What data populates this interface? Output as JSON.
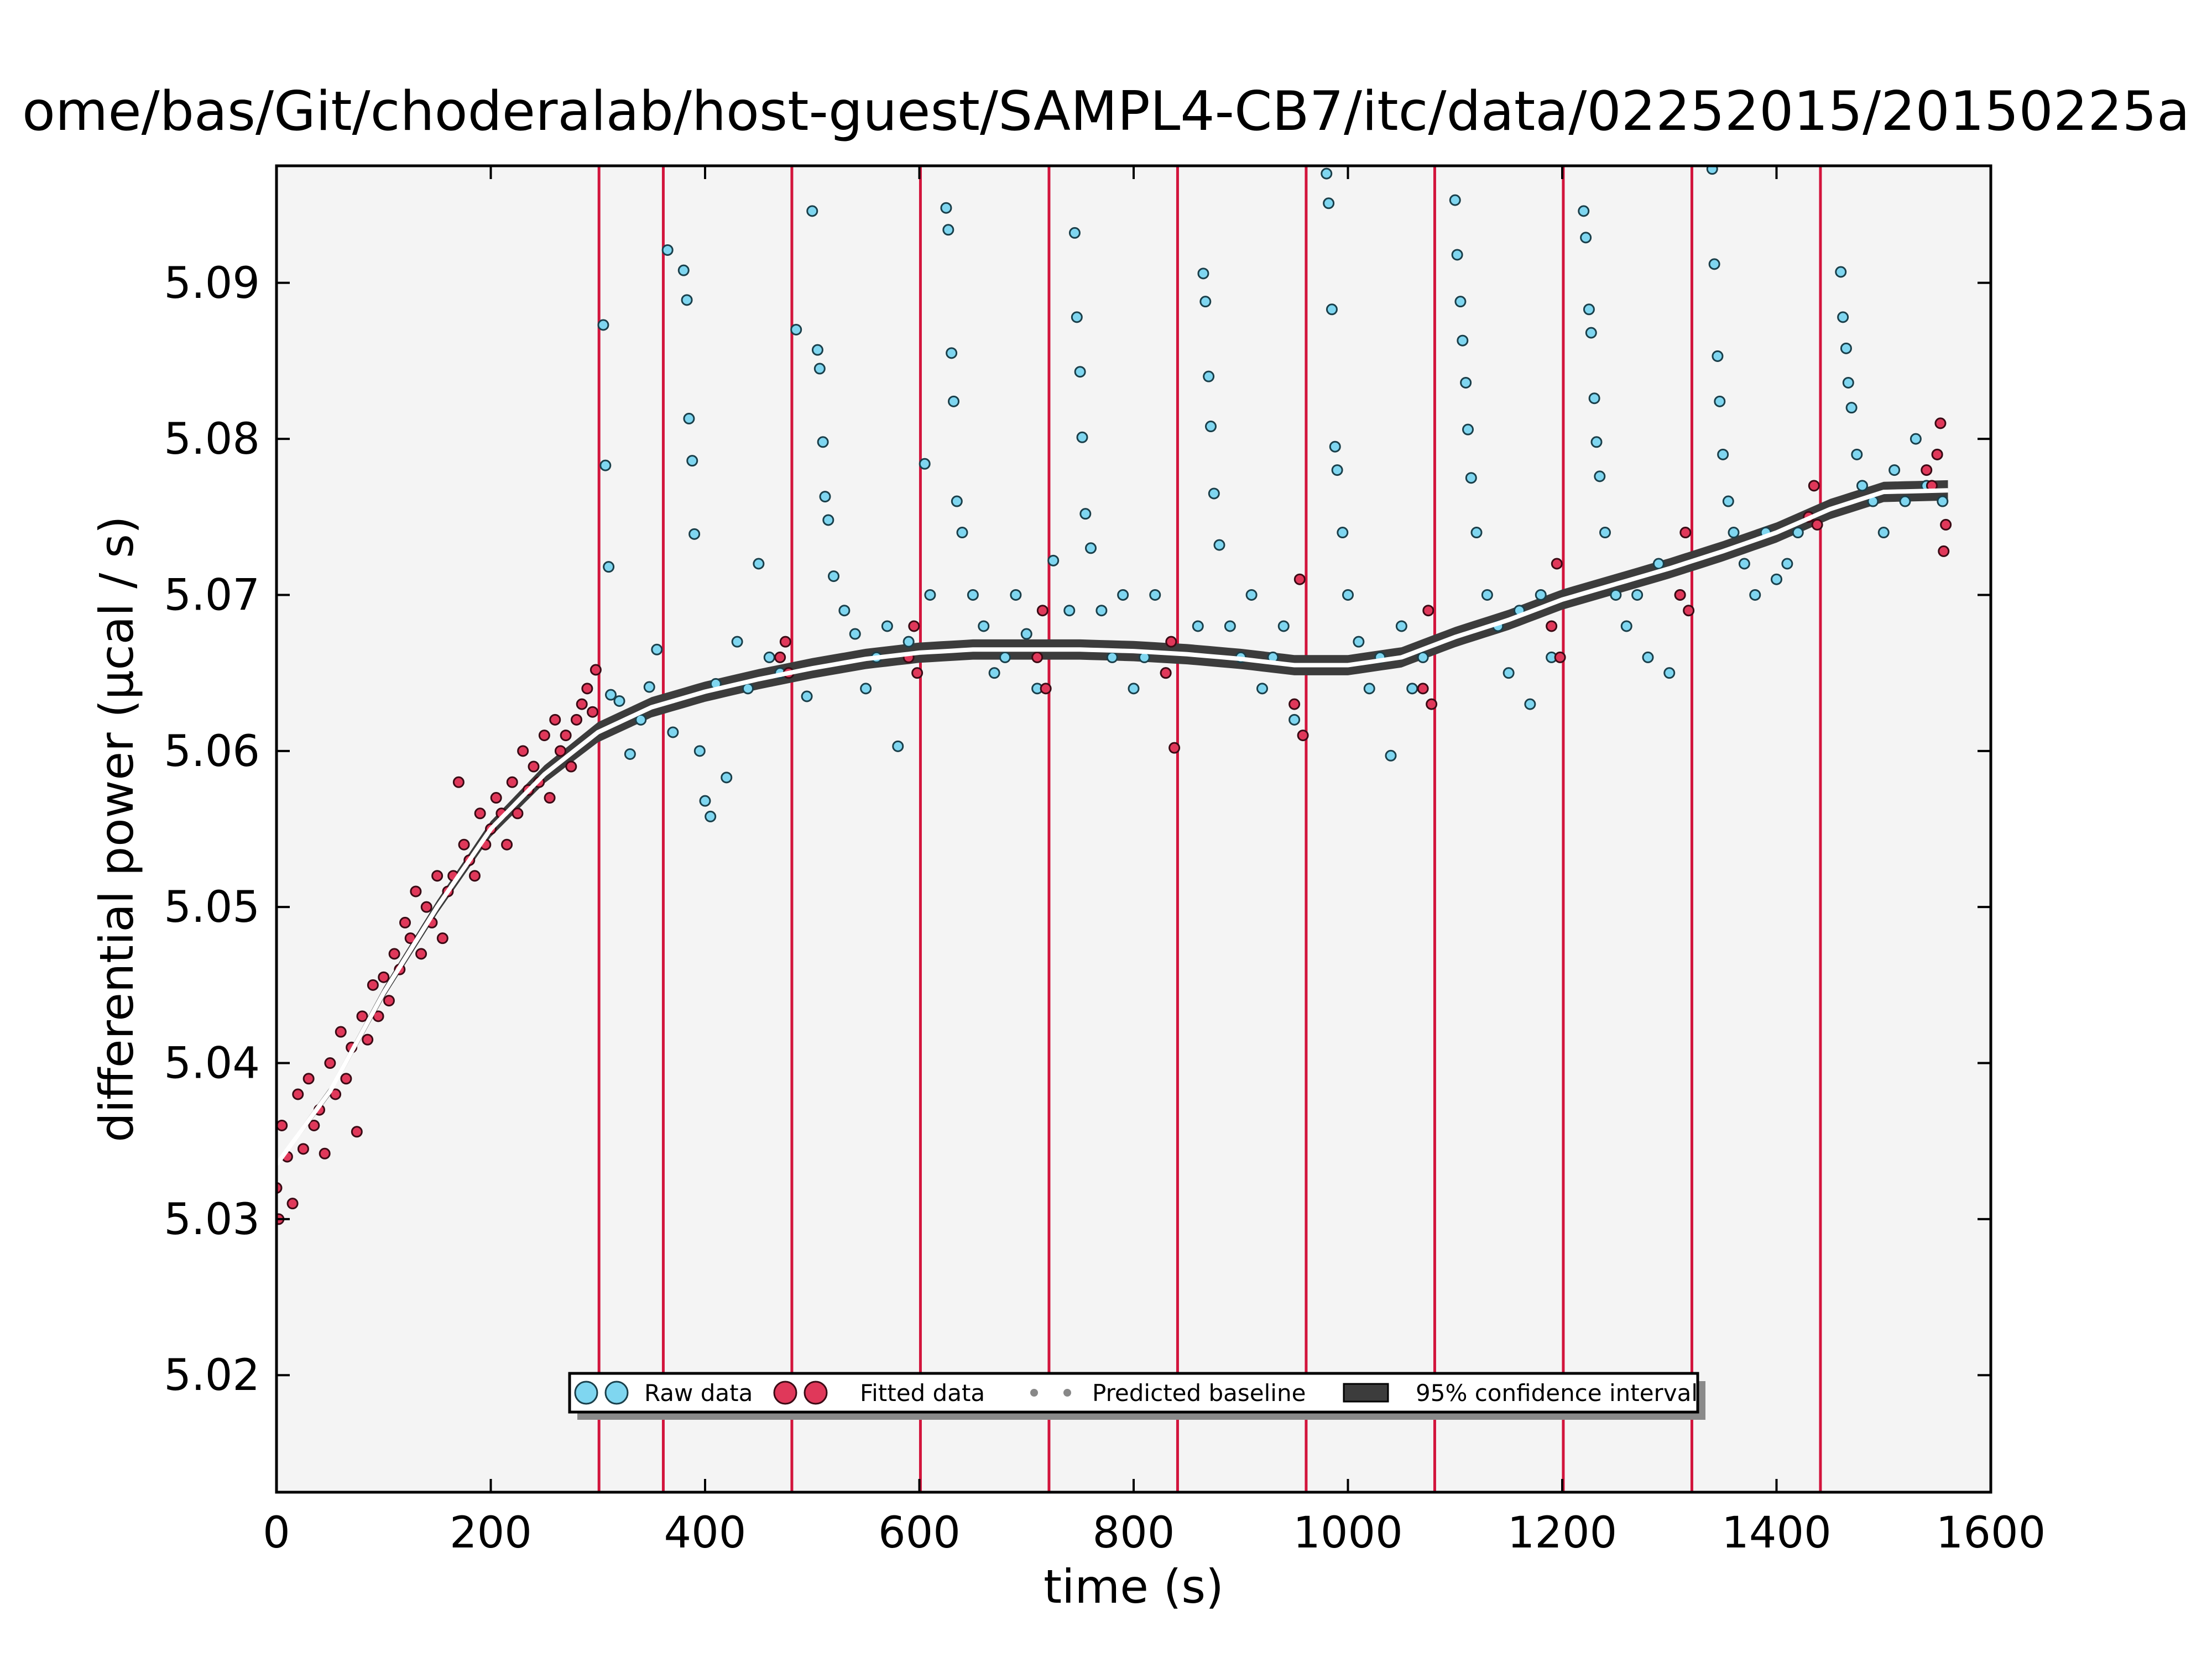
{
  "chart_data": {
    "type": "scatter",
    "title": "ome/bas/Git/choderalab/host-guest/SAMPL4-CB7/itc/data/02252015/20150225a",
    "xlabel": "time (s)",
    "ylabel": "differential power (μcal / s)",
    "xlim": [
      0,
      1600
    ],
    "ylim": [
      5.0125,
      5.0975
    ],
    "xticks": [
      0,
      200,
      400,
      600,
      800,
      1000,
      1200,
      1400,
      1600
    ],
    "xtick_labels": [
      "0",
      "200",
      "400",
      "600",
      "800",
      "1000",
      "1200",
      "1400",
      "1600"
    ],
    "yticks": [
      5.02,
      5.03,
      5.04,
      5.05,
      5.06,
      5.07,
      5.08,
      5.09
    ],
    "ytick_labels": [
      "5.02",
      "5.03",
      "5.04",
      "5.05",
      "5.06",
      "5.07",
      "5.08",
      "5.09"
    ],
    "grid": false,
    "legend_position": "bottom-center",
    "injection_times": [
      301,
      361,
      481,
      601,
      721,
      841,
      961,
      1081,
      1201,
      1321,
      1441
    ],
    "series": [
      {
        "name": "Raw data",
        "color": "#7fd6f0",
        "marker": "circle",
        "note_points": "dense scatter between injections, spikes after each injection",
        "points": [
          [
            305,
            5.0873
          ],
          [
            307,
            5.0783
          ],
          [
            310,
            5.0718
          ],
          [
            312,
            5.0636
          ],
          [
            320,
            5.0632
          ],
          [
            330,
            5.0598
          ],
          [
            340,
            5.062
          ],
          [
            348,
            5.0641
          ],
          [
            355,
            5.0665
          ],
          [
            365,
            5.0921
          ],
          [
            370,
            5.0612
          ],
          [
            380,
            5.0908
          ],
          [
            383,
            5.0889
          ],
          [
            385,
            5.0813
          ],
          [
            388,
            5.0786
          ],
          [
            390,
            5.0739
          ],
          [
            395,
            5.06
          ],
          [
            400,
            5.0568
          ],
          [
            405,
            5.0558
          ],
          [
            410,
            5.0643
          ],
          [
            420,
            5.0583
          ],
          [
            430,
            5.067
          ],
          [
            440,
            5.064
          ],
          [
            450,
            5.072
          ],
          [
            460,
            5.066
          ],
          [
            470,
            5.065
          ],
          [
            485,
            5.087
          ],
          [
            495,
            5.0635
          ],
          [
            500,
            5.0946
          ],
          [
            505,
            5.0857
          ],
          [
            507,
            5.0845
          ],
          [
            510,
            5.0798
          ],
          [
            512,
            5.0763
          ],
          [
            515,
            5.0748
          ],
          [
            520,
            5.0712
          ],
          [
            530,
            5.069
          ],
          [
            540,
            5.0675
          ],
          [
            550,
            5.064
          ],
          [
            560,
            5.066
          ],
          [
            570,
            5.068
          ],
          [
            580,
            5.0603
          ],
          [
            590,
            5.067
          ],
          [
            605,
            5.0784
          ],
          [
            610,
            5.07
          ],
          [
            625,
            5.0948
          ],
          [
            627,
            5.0934
          ],
          [
            630,
            5.0855
          ],
          [
            632,
            5.0824
          ],
          [
            635,
            5.076
          ],
          [
            640,
            5.074
          ],
          [
            650,
            5.07
          ],
          [
            660,
            5.068
          ],
          [
            670,
            5.065
          ],
          [
            680,
            5.066
          ],
          [
            690,
            5.07
          ],
          [
            700,
            5.0675
          ],
          [
            710,
            5.064
          ],
          [
            725,
            5.0722
          ],
          [
            740,
            5.069
          ],
          [
            745,
            5.0932
          ],
          [
            747,
            5.0878
          ],
          [
            750,
            5.0843
          ],
          [
            752,
            5.0801
          ],
          [
            755,
            5.0752
          ],
          [
            760,
            5.073
          ],
          [
            770,
            5.069
          ],
          [
            780,
            5.066
          ],
          [
            790,
            5.07
          ],
          [
            800,
            5.064
          ],
          [
            810,
            5.066
          ],
          [
            820,
            5.07
          ],
          [
            830,
            5.065
          ],
          [
            860,
            5.068
          ],
          [
            865,
            5.0906
          ],
          [
            867,
            5.0888
          ],
          [
            870,
            5.084
          ],
          [
            872,
            5.0808
          ],
          [
            875,
            5.0765
          ],
          [
            880,
            5.0732
          ],
          [
            890,
            5.068
          ],
          [
            900,
            5.066
          ],
          [
            910,
            5.07
          ],
          [
            920,
            5.064
          ],
          [
            930,
            5.066
          ],
          [
            940,
            5.068
          ],
          [
            950,
            5.062
          ],
          [
            980,
            5.097
          ],
          [
            982,
            5.0951
          ],
          [
            985,
            5.0883
          ],
          [
            988,
            5.0795
          ],
          [
            990,
            5.078
          ],
          [
            995,
            5.074
          ],
          [
            1000,
            5.07
          ],
          [
            1010,
            5.067
          ],
          [
            1020,
            5.064
          ],
          [
            1030,
            5.066
          ],
          [
            1040,
            5.0597
          ],
          [
            1050,
            5.068
          ],
          [
            1060,
            5.064
          ],
          [
            1070,
            5.066
          ],
          [
            1100,
            5.0953
          ],
          [
            1102,
            5.0918
          ],
          [
            1105,
            5.0888
          ],
          [
            1107,
            5.0863
          ],
          [
            1110,
            5.0836
          ],
          [
            1112,
            5.0806
          ],
          [
            1115,
            5.0775
          ],
          [
            1120,
            5.074
          ],
          [
            1130,
            5.07
          ],
          [
            1140,
            5.068
          ],
          [
            1150,
            5.065
          ],
          [
            1160,
            5.069
          ],
          [
            1170,
            5.063
          ],
          [
            1180,
            5.07
          ],
          [
            1190,
            5.066
          ],
          [
            1220,
            5.0946
          ],
          [
            1222,
            5.0929
          ],
          [
            1225,
            5.0883
          ],
          [
            1227,
            5.0868
          ],
          [
            1230,
            5.0826
          ],
          [
            1232,
            5.0798
          ],
          [
            1235,
            5.0776
          ],
          [
            1240,
            5.074
          ],
          [
            1250,
            5.07
          ],
          [
            1260,
            5.068
          ],
          [
            1270,
            5.07
          ],
          [
            1280,
            5.066
          ],
          [
            1290,
            5.072
          ],
          [
            1300,
            5.065
          ],
          [
            1310,
            5.07
          ],
          [
            1340,
            5.0973
          ],
          [
            1342,
            5.0912
          ],
          [
            1345,
            5.0853
          ],
          [
            1347,
            5.0824
          ],
          [
            1350,
            5.079
          ],
          [
            1355,
            5.076
          ],
          [
            1360,
            5.074
          ],
          [
            1370,
            5.072
          ],
          [
            1380,
            5.07
          ],
          [
            1390,
            5.074
          ],
          [
            1400,
            5.071
          ],
          [
            1410,
            5.072
          ],
          [
            1420,
            5.074
          ],
          [
            1430,
            5.075
          ],
          [
            1460,
            5.0907
          ],
          [
            1462,
            5.0878
          ],
          [
            1465,
            5.0858
          ],
          [
            1467,
            5.0836
          ],
          [
            1470,
            5.082
          ],
          [
            1475,
            5.079
          ],
          [
            1480,
            5.077
          ],
          [
            1490,
            5.076
          ],
          [
            1500,
            5.074
          ],
          [
            1510,
            5.078
          ],
          [
            1520,
            5.076
          ],
          [
            1530,
            5.08
          ],
          [
            1540,
            5.077
          ],
          [
            1550,
            5.079
          ],
          [
            1555,
            5.076
          ]
        ]
      },
      {
        "name": "Fitted data",
        "color": "#e0385a",
        "marker": "circle",
        "note_points": "dense scatter before first injection and just before each later injection",
        "points": [
          [
            0,
            5.032
          ],
          [
            2,
            5.03
          ],
          [
            5,
            5.036
          ],
          [
            10,
            5.034
          ],
          [
            15,
            5.031
          ],
          [
            20,
            5.038
          ],
          [
            25,
            5.0345
          ],
          [
            30,
            5.039
          ],
          [
            35,
            5.036
          ],
          [
            40,
            5.037
          ],
          [
            45,
            5.0342
          ],
          [
            50,
            5.04
          ],
          [
            55,
            5.038
          ],
          [
            60,
            5.042
          ],
          [
            65,
            5.039
          ],
          [
            70,
            5.041
          ],
          [
            75,
            5.0356
          ],
          [
            80,
            5.043
          ],
          [
            85,
            5.0415
          ],
          [
            90,
            5.045
          ],
          [
            95,
            5.043
          ],
          [
            100,
            5.0455
          ],
          [
            105,
            5.044
          ],
          [
            110,
            5.047
          ],
          [
            115,
            5.046
          ],
          [
            120,
            5.049
          ],
          [
            125,
            5.048
          ],
          [
            130,
            5.051
          ],
          [
            135,
            5.047
          ],
          [
            140,
            5.05
          ],
          [
            145,
            5.049
          ],
          [
            150,
            5.052
          ],
          [
            155,
            5.048
          ],
          [
            160,
            5.051
          ],
          [
            165,
            5.052
          ],
          [
            170,
            5.058
          ],
          [
            175,
            5.054
          ],
          [
            180,
            5.053
          ],
          [
            185,
            5.052
          ],
          [
            190,
            5.056
          ],
          [
            195,
            5.054
          ],
          [
            200,
            5.055
          ],
          [
            205,
            5.057
          ],
          [
            210,
            5.056
          ],
          [
            215,
            5.054
          ],
          [
            220,
            5.058
          ],
          [
            225,
            5.056
          ],
          [
            230,
            5.06
          ],
          [
            235,
            5.0575
          ],
          [
            240,
            5.059
          ],
          [
            245,
            5.058
          ],
          [
            250,
            5.061
          ],
          [
            255,
            5.057
          ],
          [
            260,
            5.062
          ],
          [
            265,
            5.06
          ],
          [
            270,
            5.061
          ],
          [
            275,
            5.059
          ],
          [
            280,
            5.062
          ],
          [
            285,
            5.063
          ],
          [
            290,
            5.064
          ],
          [
            295,
            5.0625
          ],
          [
            298,
            5.0652
          ],
          [
            470,
            5.066
          ],
          [
            475,
            5.067
          ],
          [
            478,
            5.065
          ],
          [
            590,
            5.066
          ],
          [
            595,
            5.068
          ],
          [
            598,
            5.065
          ],
          [
            710,
            5.066
          ],
          [
            715,
            5.069
          ],
          [
            718,
            5.064
          ],
          [
            830,
            5.065
          ],
          [
            835,
            5.067
          ],
          [
            838,
            5.0602
          ],
          [
            950,
            5.063
          ],
          [
            955,
            5.071
          ],
          [
            958,
            5.061
          ],
          [
            1070,
            5.064
          ],
          [
            1075,
            5.069
          ],
          [
            1078,
            5.063
          ],
          [
            1190,
            5.068
          ],
          [
            1195,
            5.072
          ],
          [
            1198,
            5.066
          ],
          [
            1310,
            5.07
          ],
          [
            1315,
            5.074
          ],
          [
            1318,
            5.069
          ],
          [
            1430,
            5.075
          ],
          [
            1435,
            5.077
          ],
          [
            1438,
            5.0745
          ],
          [
            1540,
            5.078
          ],
          [
            1545,
            5.077
          ],
          [
            1550,
            5.079
          ],
          [
            1553,
            5.081
          ],
          [
            1556,
            5.0728
          ],
          [
            1558,
            5.0745
          ]
        ]
      },
      {
        "name": "Predicted baseline",
        "color": "#ffffff",
        "note": "white line (thin grey dots) inside confidence band",
        "points": [
          [
            0,
            5.0335
          ],
          [
            50,
            5.0382
          ],
          [
            100,
            5.0445
          ],
          [
            150,
            5.05
          ],
          [
            200,
            5.055
          ],
          [
            250,
            5.0585
          ],
          [
            300,
            5.0612
          ],
          [
            350,
            5.0628
          ],
          [
            400,
            5.0638
          ],
          [
            450,
            5.0646
          ],
          [
            500,
            5.0653
          ],
          [
            550,
            5.0659
          ],
          [
            600,
            5.0663
          ],
          [
            650,
            5.0665
          ],
          [
            700,
            5.0665
          ],
          [
            750,
            5.0665
          ],
          [
            800,
            5.0664
          ],
          [
            850,
            5.0662
          ],
          [
            900,
            5.0659
          ],
          [
            950,
            5.0655
          ],
          [
            1000,
            5.0655
          ],
          [
            1050,
            5.066
          ],
          [
            1100,
            5.0673
          ],
          [
            1150,
            5.0684
          ],
          [
            1200,
            5.0697
          ],
          [
            1250,
            5.0707
          ],
          [
            1300,
            5.0717
          ],
          [
            1350,
            5.0728
          ],
          [
            1400,
            5.074
          ],
          [
            1450,
            5.0755
          ],
          [
            1500,
            5.0766
          ],
          [
            1560,
            5.0767
          ]
        ]
      },
      {
        "name": "95% confidence interval",
        "color": "#3c3c3c",
        "note": "dark band around baseline; narrow early, about +-0.0006 after 300 s",
        "halfwidth_early": 0.0002,
        "halfwidth_late": 0.00065
      }
    ],
    "legend": [
      {
        "label": "Raw data",
        "kind": "raw"
      },
      {
        "label": "Fitted data",
        "kind": "fitted"
      },
      {
        "label": "Predicted baseline",
        "kind": "baseline"
      },
      {
        "label": "95% confidence interval",
        "kind": "ci"
      }
    ],
    "colors": {
      "plot_bg": "#f4f4f4",
      "injection_line": "#d2143c",
      "raw_fill": "#7fd6f0",
      "fitted_fill": "#e0385a",
      "band": "#3c3c3c",
      "baseline": "#ffffff"
    }
  }
}
